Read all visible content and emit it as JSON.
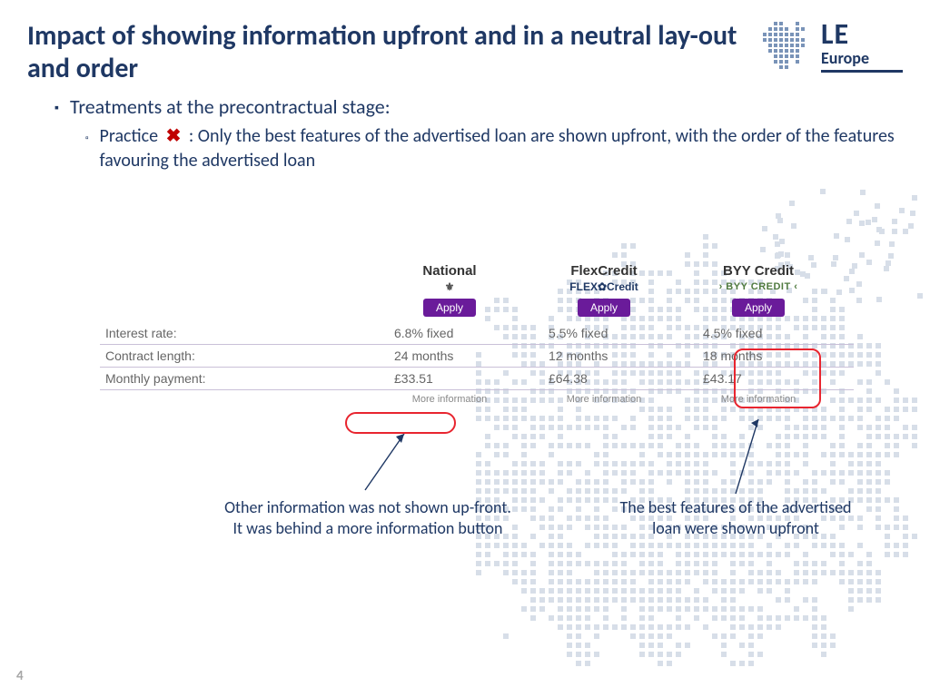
{
  "title": "Impact of showing information upfront and in a neutral lay-out and order",
  "logo": {
    "big": "LE",
    "small": "Europe"
  },
  "bullet1": "Treatments at the precontractual stage:",
  "bullet2_lead": "Practice",
  "bullet2_rest": ": Only the best features of the advertised loan are shown upfront, with the order of the features favouring the advertised loan",
  "providers": {
    "p1": {
      "name": "National",
      "logo": "⚜",
      "apply": "Apply"
    },
    "p2": {
      "name": "FlexCredit",
      "logo": "FLEX✿Credit",
      "apply": "Apply"
    },
    "p3": {
      "name": "BYY Credit",
      "logo": "› BYY CREDIT ‹",
      "apply": "Apply"
    }
  },
  "rows": {
    "r1": {
      "label": "Interest rate:",
      "v1": "6.8% fixed",
      "v2": "5.5% fixed",
      "v3": "4.5% fixed"
    },
    "r2": {
      "label": "Contract length:",
      "v1": "24 months",
      "v2": "12 months",
      "v3": "18 months"
    },
    "r3": {
      "label": "Monthly payment:",
      "v1": "£33.51",
      "v2": "£64.38",
      "v3": "£43.17"
    }
  },
  "more_info": "More information",
  "callout1": "Other information was not shown up-front. It was behind a more information button",
  "callout2": "The best features of the advertised loan were shown upfront",
  "page_number": "4",
  "colors": {
    "heading": "#1f3864",
    "accent_red": "#e8252f",
    "apply_btn": "#6a1b9a",
    "row_border": "#c9c0d8"
  }
}
